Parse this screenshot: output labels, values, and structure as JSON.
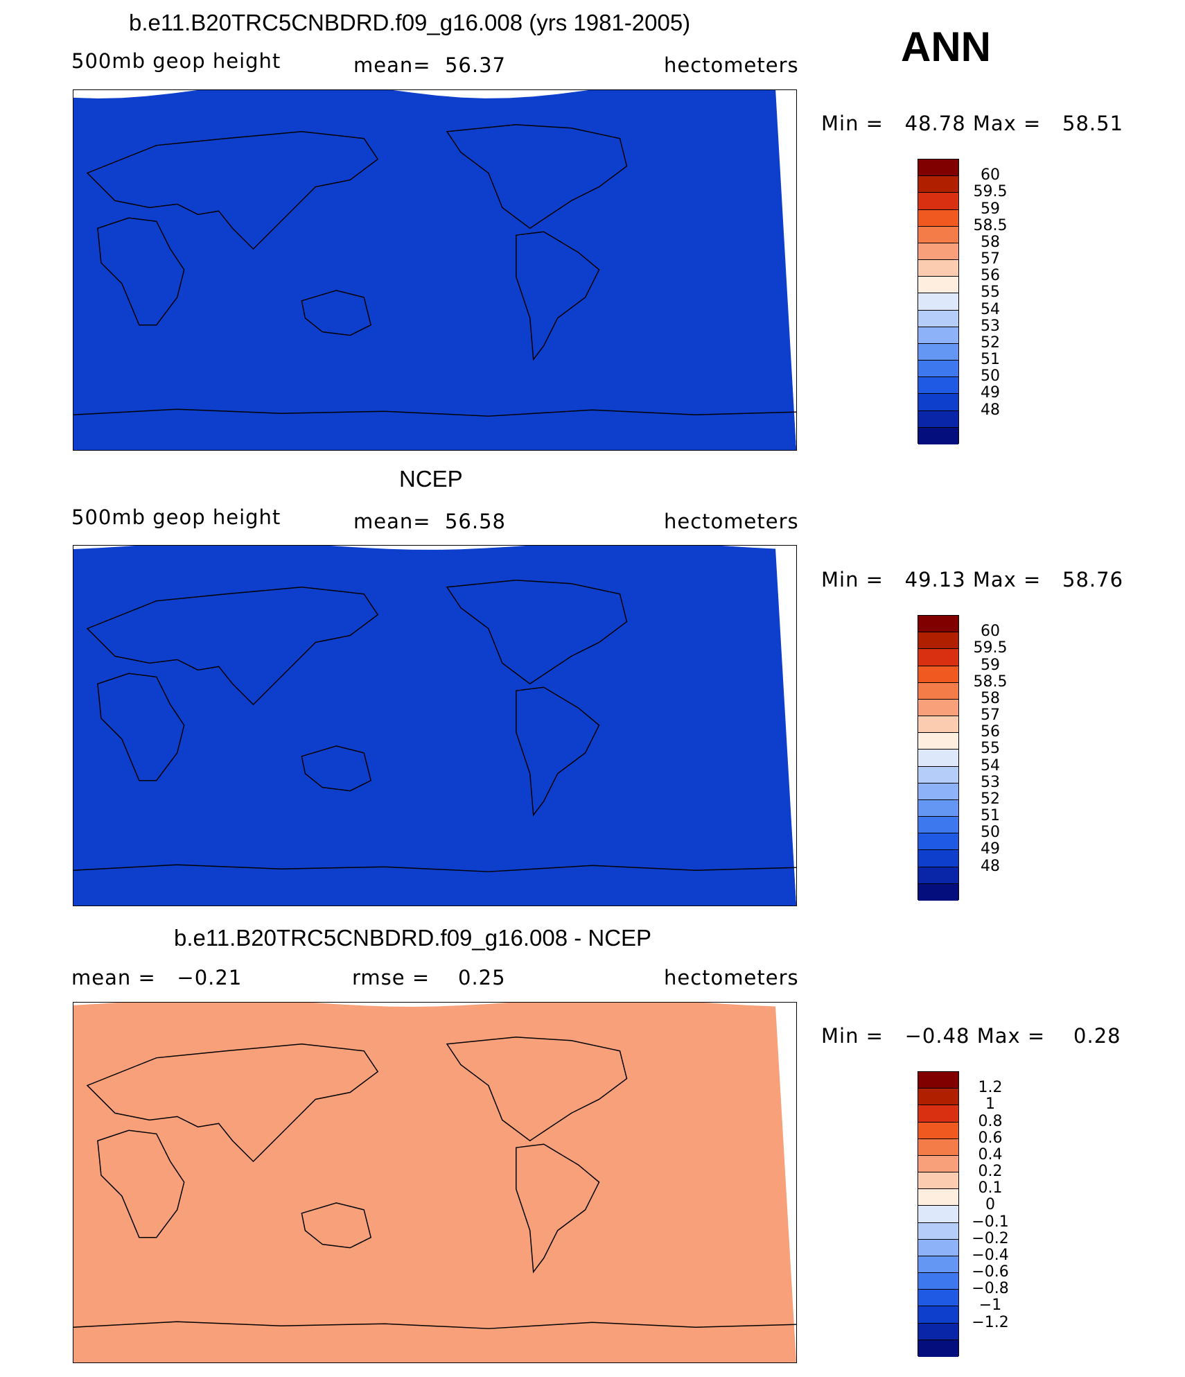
{
  "season": "ANN",
  "panels": [
    {
      "title": "b.e11.B20TRC5CNBDRD.f09_g16.008 (yrs 1981-2005)",
      "left_label": "500mb geop height",
      "mean_text": "mean=  56.37",
      "units": "hectometers",
      "minmax": "Min =   48.78 Max =   58.51",
      "colorbar": {
        "colors": [
          "#800000",
          "#b02000",
          "#d83010",
          "#f05a20",
          "#f47c48",
          "#f7a07a",
          "#fcccb0",
          "#fdeedf",
          "#dde9fb",
          "#b5cef9",
          "#8eb2f8",
          "#6496f4",
          "#3d78ee",
          "#1f5ae4",
          "#0d3ecc",
          "#0a26a8",
          "#040e7c"
        ],
        "labels": [
          "60",
          "59.5",
          "59",
          "58.5",
          "58",
          "57",
          "56",
          "55",
          "54",
          "53",
          "52",
          "51",
          "50",
          "49",
          "48"
        ]
      }
    },
    {
      "title": "NCEP",
      "left_label": "500mb geop height",
      "mean_text": "mean=  56.58",
      "units": "hectometers",
      "minmax": "Min =   49.13 Max =   58.76",
      "colorbar": {
        "colors": [
          "#800000",
          "#b02000",
          "#d83010",
          "#f05a20",
          "#f47c48",
          "#f7a07a",
          "#fcccb0",
          "#fdeedf",
          "#dde9fb",
          "#b5cef9",
          "#8eb2f8",
          "#6496f4",
          "#3d78ee",
          "#1f5ae4",
          "#0d3ecc",
          "#0a26a8",
          "#040e7c"
        ],
        "labels": [
          "60",
          "59.5",
          "59",
          "58.5",
          "58",
          "57",
          "56",
          "55",
          "54",
          "53",
          "52",
          "51",
          "50",
          "49",
          "48"
        ]
      }
    },
    {
      "title": "b.e11.B20TRC5CNBDRD.f09_g16.008 - NCEP",
      "left_label": "mean =   −0.21",
      "mean_text": "rmse =    0.25",
      "units": "hectometers",
      "minmax": "Min =   −0.48 Max =    0.28",
      "colorbar": {
        "colors": [
          "#800000",
          "#b02000",
          "#d83010",
          "#f05a20",
          "#f47c48",
          "#f7a07a",
          "#fcccb0",
          "#fdeedf",
          "#dde9fb",
          "#b5cef9",
          "#8eb2f8",
          "#6496f4",
          "#3d78ee",
          "#1f5ae4",
          "#0d3ecc",
          "#0a26a8",
          "#040e7c"
        ],
        "labels": [
          "1.2",
          "1",
          "0.8",
          "0.6",
          "0.4",
          "0.2",
          "0.1",
          "0",
          "−0.1",
          "−0.2",
          "−0.4",
          "−0.6",
          "−0.8",
          "−1",
          "−1.2"
        ]
      }
    }
  ],
  "map_fields": [
    {
      "bands": [
        "#0d3ecc",
        "#1f5ae4",
        "#3d78ee",
        "#6496f4",
        "#8eb2f8",
        "#b5cef9",
        "#dde9fb",
        "#fdeedf",
        "#fcccb0",
        "#f7a07a",
        "#f47c48",
        "#f7a07a",
        "#fcccb0",
        "#fdeedf",
        "#dde9fb",
        "#b5cef9",
        "#8eb2f8",
        "#6496f4",
        "#3d78ee",
        "#1f5ae4",
        "#0d3ecc"
      ]
    },
    {
      "bands": [
        "#0d3ecc",
        "#1f5ae4",
        "#3d78ee",
        "#6496f4",
        "#8eb2f8",
        "#b5cef9",
        "#dde9fb",
        "#fdeedf",
        "#fcccb0",
        "#f7a07a",
        "#f05a20",
        "#f05a20",
        "#f7a07a",
        "#fcccb0",
        "#fdeedf",
        "#dde9fb",
        "#b5cef9",
        "#8eb2f8",
        "#6496f4",
        "#3d78ee",
        "#1f5ae4",
        "#0d3ecc"
      ]
    },
    {
      "bands": [
        "#f7a07a",
        "#fcccb0",
        "#dde9fb",
        "#b5cef9",
        "#8eb2f8",
        "#8eb2f8",
        "#8eb2f8",
        "#8eb2f8",
        "#8eb2f8",
        "#b5cef9",
        "#dde9fb",
        "#b5cef9",
        "#8eb2f8",
        "#6496f4",
        "#b5cef9",
        "#fcccb0"
      ]
    }
  ]
}
